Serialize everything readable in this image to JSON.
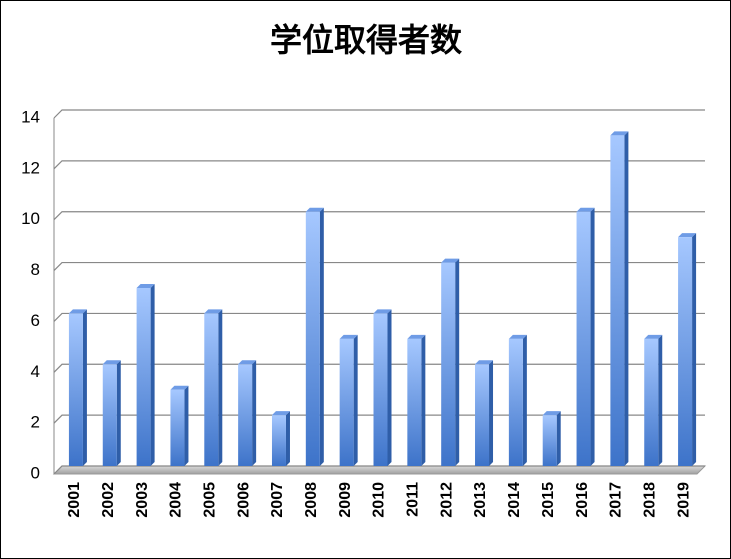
{
  "chart_data": {
    "type": "bar",
    "title": "学位取得者数",
    "categories": [
      "2001",
      "2002",
      "2003",
      "2004",
      "2005",
      "2006",
      "2007",
      "2008",
      "2009",
      "2010",
      "2011",
      "2012",
      "2013",
      "2014",
      "2015",
      "2016",
      "2017",
      "2018",
      "2019"
    ],
    "values": [
      6,
      4,
      7,
      3,
      6,
      4,
      2,
      10,
      5,
      6,
      5,
      8,
      4,
      5,
      2,
      10,
      13,
      5,
      9
    ],
    "color": "#4f86d9",
    "ylim": [
      0,
      14
    ],
    "yticks": [
      0,
      2,
      4,
      6,
      8,
      10,
      12,
      14
    ],
    "grid": true
  }
}
